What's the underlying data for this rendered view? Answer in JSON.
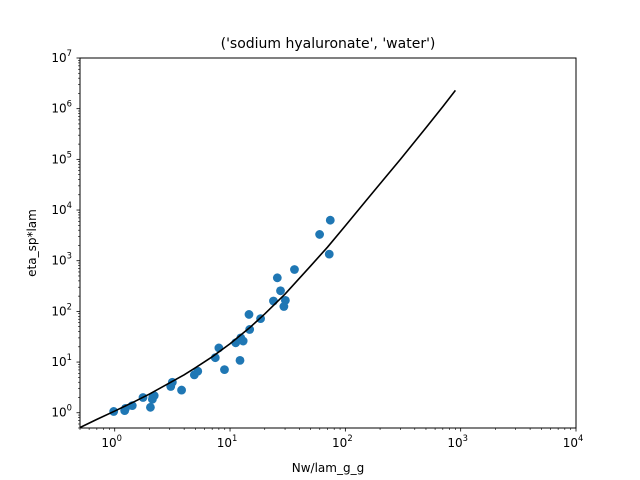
{
  "chart_data": {
    "type": "scatter",
    "title": "('sodium hyaluronate', 'water')",
    "xlabel": "Nw/lam_g_g",
    "ylabel": "eta_sp*lam",
    "xscale": "log",
    "yscale": "log",
    "xlim": [
      0.5,
      10000
    ],
    "ylim": [
      0.5,
      10000000
    ],
    "grid": false,
    "xticks": [
      {
        "base": "10",
        "exp": "0",
        "value": 1
      },
      {
        "base": "10",
        "exp": "1",
        "value": 10
      },
      {
        "base": "10",
        "exp": "2",
        "value": 100
      },
      {
        "base": "10",
        "exp": "3",
        "value": 1000
      },
      {
        "base": "10",
        "exp": "4",
        "value": 10000
      }
    ],
    "yticks": [
      {
        "base": "10",
        "exp": "0",
        "value": 1
      },
      {
        "base": "10",
        "exp": "1",
        "value": 10
      },
      {
        "base": "10",
        "exp": "2",
        "value": 100
      },
      {
        "base": "10",
        "exp": "3",
        "value": 1000
      },
      {
        "base": "10",
        "exp": "4",
        "value": 10000
      },
      {
        "base": "10",
        "exp": "5",
        "value": 100000
      },
      {
        "base": "10",
        "exp": "6",
        "value": 1000000
      },
      {
        "base": "10",
        "exp": "7",
        "value": 10000000
      }
    ],
    "series": [
      {
        "kind": "points",
        "color": "#1f77b4",
        "x": [
          0.98,
          1.22,
          1.24,
          1.42,
          1.76,
          2.04,
          2.12,
          2.14,
          2.2,
          3.06,
          3.16,
          3.8,
          4.9,
          5.25,
          7.45,
          8.0,
          8.95,
          11.2,
          12.2,
          12.4,
          13.0,
          14.6,
          14.8,
          18.4,
          23.8,
          25.7,
          27.4,
          29.3,
          30.2,
          36.2,
          59.8,
          72.5,
          74.0
        ],
        "y": [
          1.06,
          1.1,
          1.22,
          1.38,
          2.0,
          1.28,
          1.84,
          2.04,
          2.18,
          3.3,
          4.0,
          2.8,
          5.6,
          6.6,
          12.2,
          19.0,
          7.1,
          24.0,
          10.8,
          30.0,
          26.0,
          87.0,
          44.0,
          72.0,
          160.0,
          460.0,
          255.0,
          125.0,
          165.0,
          670.0,
          3300.0,
          1350.0,
          6300.0
        ]
      },
      {
        "kind": "line",
        "color": "#000000",
        "x": [
          0.5,
          0.7,
          1.0,
          1.5,
          2.0,
          3.0,
          4.0,
          5.0,
          7.0,
          10.0,
          15.0,
          20.0,
          30.0,
          50.0,
          70.0,
          100.0,
          150.0,
          200.0,
          300.0,
          500.0,
          700.0,
          900.0
        ],
        "y": [
          0.51,
          0.74,
          1.08,
          1.68,
          2.34,
          3.9,
          5.6,
          7.7,
          12.7,
          23.0,
          49.0,
          89.0,
          220.0,
          790.0,
          1850.0,
          4900.0,
          15000.0,
          33000.0,
          100000.0,
          420000.0,
          1100000.0,
          2300000.0
        ]
      }
    ]
  }
}
